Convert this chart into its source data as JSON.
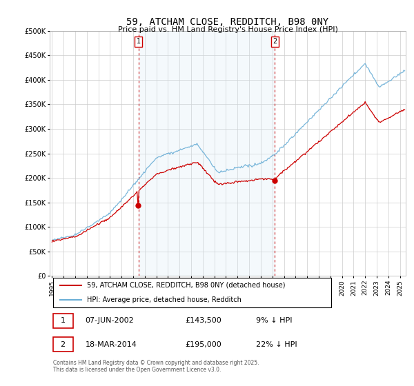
{
  "title": "59, ATCHAM CLOSE, REDDITCH, B98 0NY",
  "subtitle": "Price paid vs. HM Land Registry's House Price Index (HPI)",
  "legend_line1": "59, ATCHAM CLOSE, REDDITCH, B98 0NY (detached house)",
  "legend_line2": "HPI: Average price, detached house, Redditch",
  "annotation1_label": "1",
  "annotation1_date": "07-JUN-2002",
  "annotation1_price": "£143,500",
  "annotation1_hpi": "9% ↓ HPI",
  "annotation2_label": "2",
  "annotation2_date": "18-MAR-2014",
  "annotation2_price": "£195,000",
  "annotation2_hpi": "22% ↓ HPI",
  "footer": "Contains HM Land Registry data © Crown copyright and database right 2025.\nThis data is licensed under the Open Government Licence v3.0.",
  "xmin": 1994.8,
  "xmax": 2025.5,
  "ymin": 0,
  "ymax": 500000,
  "yticks": [
    0,
    50000,
    100000,
    150000,
    200000,
    250000,
    300000,
    350000,
    400000,
    450000,
    500000
  ],
  "ytick_labels": [
    "£0",
    "£50K",
    "£100K",
    "£150K",
    "£200K",
    "£250K",
    "£300K",
    "£350K",
    "£400K",
    "£450K",
    "£500K"
  ],
  "color_red": "#cc0000",
  "color_blue": "#6aaed6",
  "color_vline": "#cc0000",
  "shade_color": "#d6e8f5",
  "background_chart": "#ffffff",
  "background_fig": "#ffffff",
  "vline1_x": 2002.458,
  "vline2_x": 2014.208,
  "sale1_price": 143500,
  "sale2_price": 195000,
  "grid_color": "#cccccc"
}
